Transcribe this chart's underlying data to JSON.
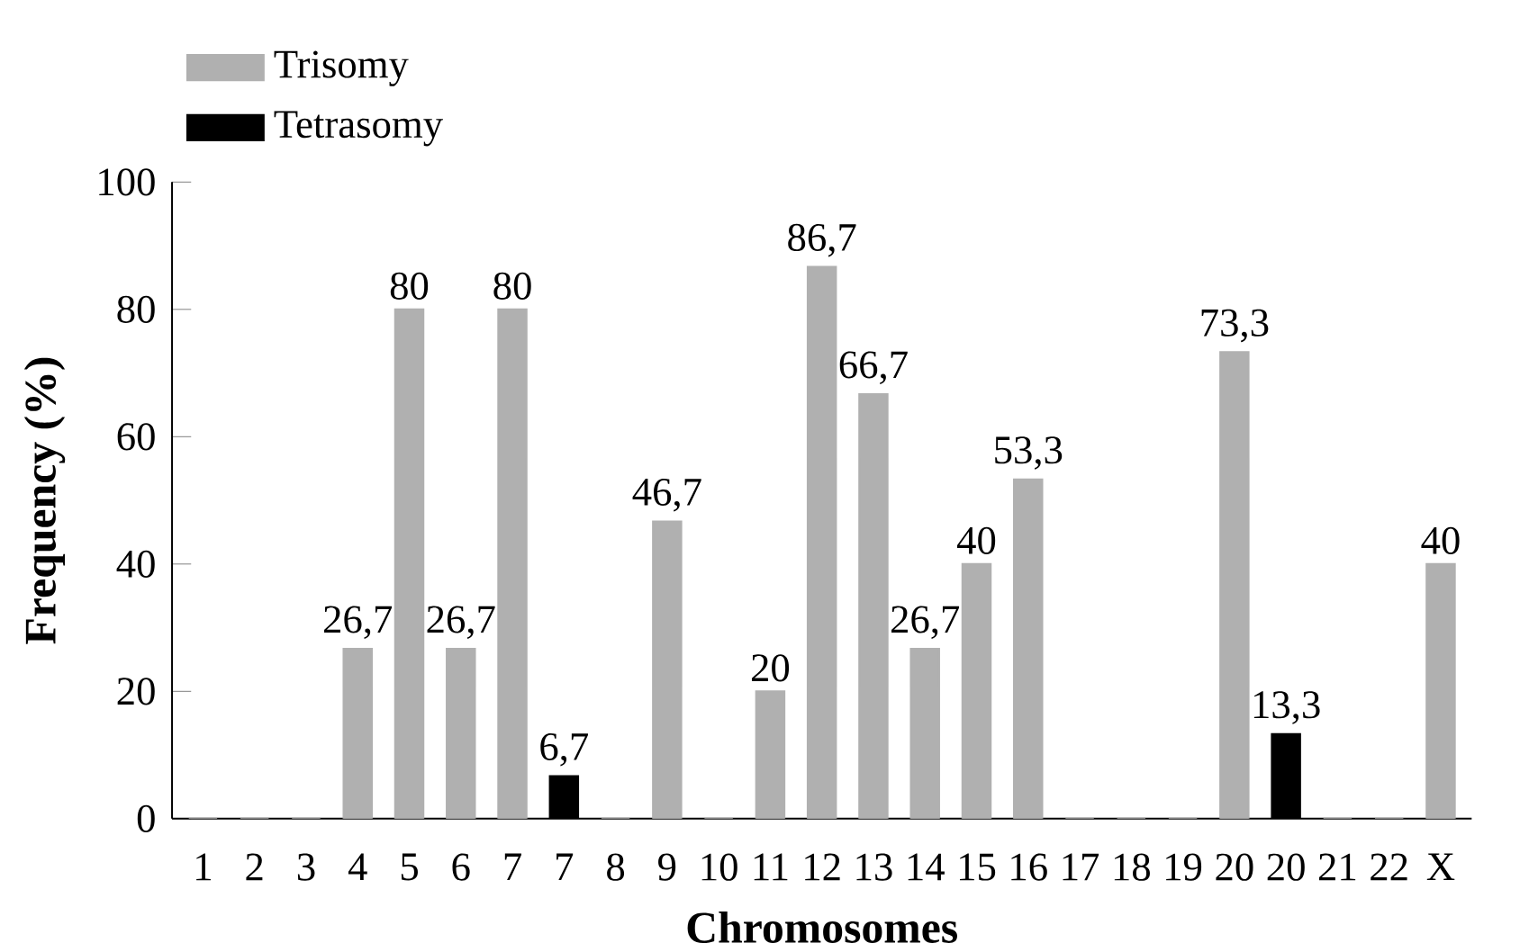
{
  "chart_data": {
    "type": "bar",
    "xlabel": "Chromosomes",
    "ylabel": "Frequency (%)",
    "categories": [
      "1",
      "2",
      "3",
      "4",
      "5",
      "6",
      "7",
      "7",
      "8",
      "9",
      "10",
      "11",
      "12",
      "13",
      "14",
      "15",
      "16",
      "17",
      "18",
      "19",
      "20",
      "20",
      "21",
      "22",
      "X"
    ],
    "series": [
      {
        "name": "Trisomy",
        "color": "#b0b0b0",
        "values": [
          0,
          0,
          0,
          26.7,
          80,
          26.7,
          80,
          null,
          0,
          46.7,
          0,
          20,
          86.7,
          66.7,
          26.7,
          40,
          53.3,
          0,
          0,
          0,
          73.3,
          null,
          0,
          0,
          40
        ],
        "value_labels": [
          null,
          null,
          null,
          "26,7",
          "80",
          "26,7",
          "80",
          null,
          null,
          "46,7",
          null,
          "20",
          "86,7",
          "66,7",
          "26,7",
          "40",
          "53,3",
          null,
          null,
          null,
          "73,3",
          null,
          null,
          null,
          "40"
        ]
      },
      {
        "name": "Tetrasomy",
        "color": "#000000",
        "values": [
          null,
          null,
          null,
          null,
          null,
          null,
          null,
          6.7,
          null,
          null,
          null,
          null,
          null,
          null,
          null,
          null,
          null,
          null,
          null,
          null,
          null,
          13.3,
          null,
          null,
          null
        ],
        "value_labels": [
          null,
          null,
          null,
          null,
          null,
          null,
          null,
          "6,7",
          null,
          null,
          null,
          null,
          null,
          null,
          null,
          null,
          null,
          null,
          null,
          null,
          null,
          "13,3",
          null,
          null,
          null
        ]
      }
    ],
    "ylim": [
      0,
      100
    ],
    "yticks": [
      0,
      20,
      40,
      60,
      80,
      100
    ],
    "grid": false,
    "legend": "top left"
  }
}
